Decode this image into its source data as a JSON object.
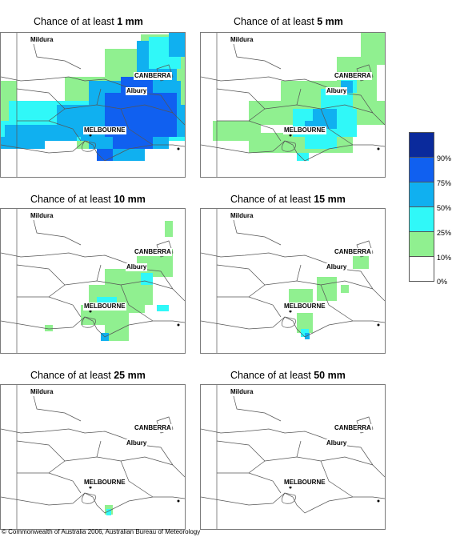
{
  "panels": [
    {
      "title_prefix": "Chance of at least ",
      "amount": "1 mm"
    },
    {
      "title_prefix": "Chance of at least ",
      "amount": "5 mm"
    },
    {
      "title_prefix": "Chance of at least ",
      "amount": "10 mm"
    },
    {
      "title_prefix": "Chance of at least ",
      "amount": "15 mm"
    },
    {
      "title_prefix": "Chance of at least ",
      "amount": "25 mm"
    },
    {
      "title_prefix": "Chance of at least ",
      "amount": "50 mm"
    }
  ],
  "places": {
    "mildura": "Mildura",
    "canberra": "CANBERRA",
    "albury": "Albury",
    "melbourne": "MELBOURNE"
  },
  "legend": {
    "labels": [
      "90%",
      "75%",
      "50%",
      "25%",
      "10%",
      "0%"
    ],
    "colors": [
      "#0a2a9c",
      "#1060f0",
      "#10b0f0",
      "#30f8f8",
      "#90f090",
      "#ffffff"
    ]
  },
  "colors": {
    "border": "#555555",
    "frame": "#7a7a7a"
  },
  "footer": "© Commonwealth of Australia 2006, Australian Bureau of Meteorology"
}
